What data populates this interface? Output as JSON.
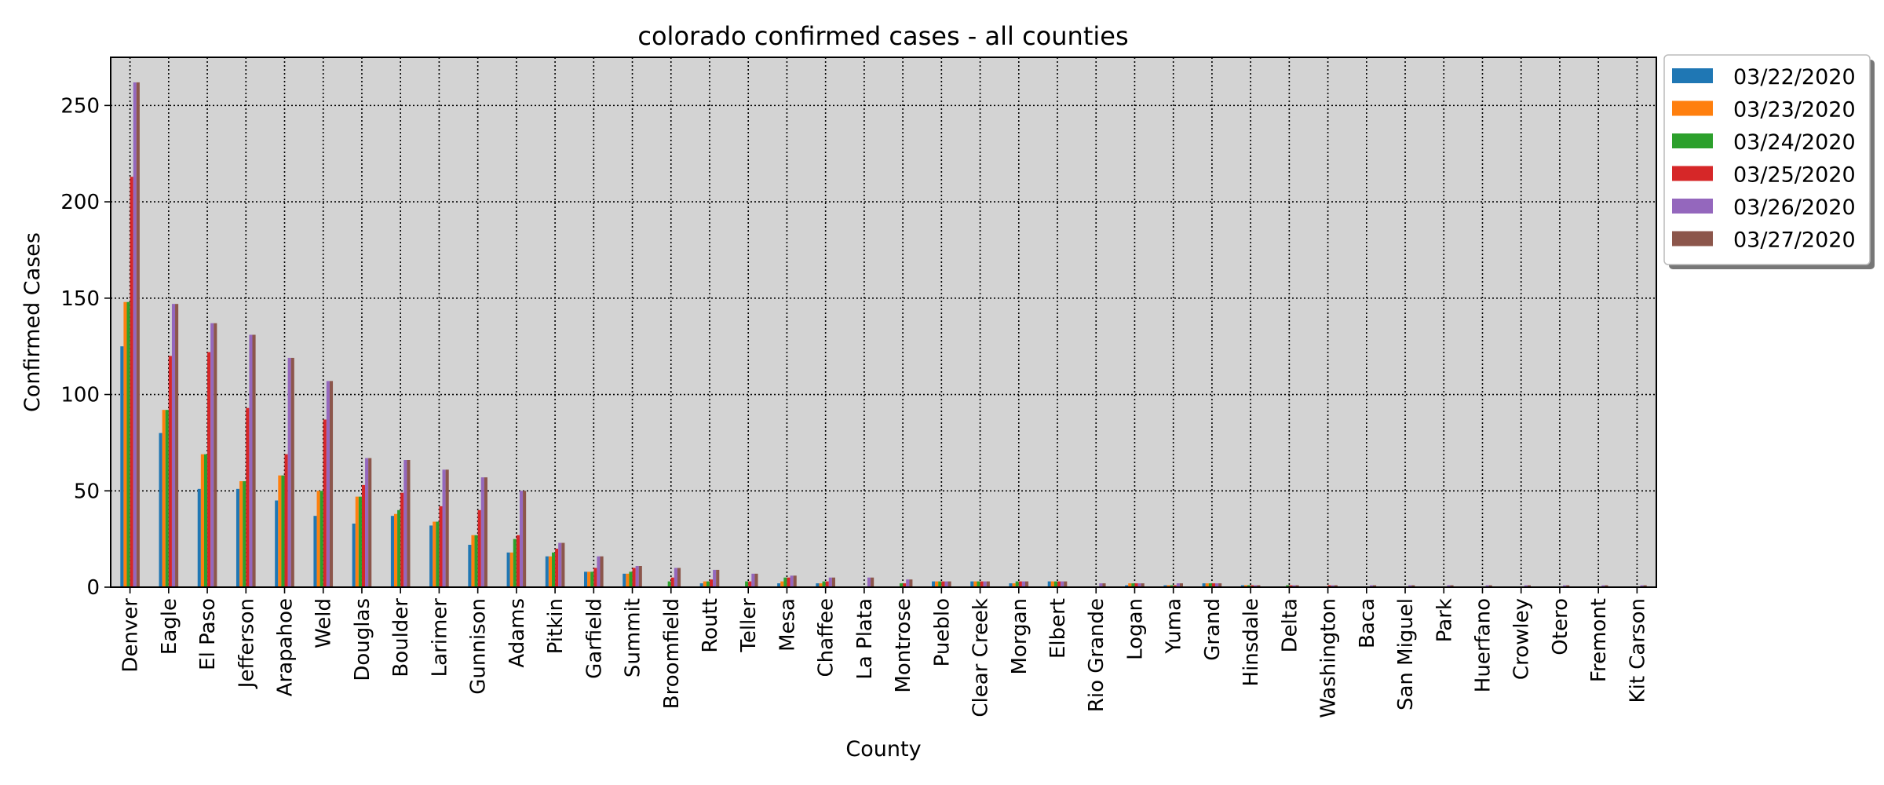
{
  "chart_data": {
    "type": "bar",
    "title": "colorado confirmed cases - all counties",
    "xlabel": "County",
    "ylabel": "Confirmed Cases",
    "ylim": [
      0,
      275
    ],
    "yticks": [
      0,
      50,
      100,
      150,
      200,
      250
    ],
    "grid": true,
    "legend_position": "outside-top-right",
    "background_color": "#d3d3d3",
    "categories": [
      "Denver",
      "Eagle",
      "El Paso",
      "Jefferson",
      "Arapahoe",
      "Weld",
      "Douglas",
      "Boulder",
      "Larimer",
      "Gunnison",
      "Adams",
      "Pitkin",
      "Garfield",
      "Summit",
      "Broomfield",
      "Routt",
      "Teller",
      "Mesa",
      "Chaffee",
      "La Plata",
      "Montrose",
      "Pueblo",
      "Clear Creek",
      "Morgan",
      "Elbert",
      "Rio Grande",
      "Logan",
      "Yuma",
      "Grand",
      "Hinsdale",
      "Delta",
      "Washington",
      "Baca",
      "San Miguel",
      "Park",
      "Huerfano",
      "Crowley",
      "Otero",
      "Fremont",
      "Kit Carson"
    ],
    "series": [
      {
        "name": "03/22/2020",
        "color": "#1f77b4",
        "values": [
          125,
          80,
          51,
          51,
          45,
          37,
          33,
          37,
          32,
          22,
          18,
          16,
          8,
          7,
          0,
          2,
          0,
          2,
          2,
          0,
          0,
          3,
          3,
          2,
          3,
          0,
          1,
          1,
          2,
          1,
          0,
          0,
          0,
          0,
          0,
          0,
          0,
          0,
          0,
          0
        ]
      },
      {
        "name": "03/23/2020",
        "color": "#ff7f0e",
        "values": [
          148,
          92,
          69,
          55,
          58,
          50,
          47,
          38,
          34,
          27,
          18,
          16,
          8,
          7,
          0,
          3,
          0,
          3,
          2,
          0,
          0,
          3,
          3,
          2,
          3,
          0,
          2,
          1,
          2,
          1,
          0,
          0,
          0,
          0,
          0,
          0,
          0,
          0,
          0,
          0
        ]
      },
      {
        "name": "03/24/2020",
        "color": "#2ca02c",
        "values": [
          148,
          92,
          69,
          55,
          58,
          50,
          47,
          40,
          34,
          27,
          25,
          18,
          8,
          8,
          3,
          3,
          3,
          5,
          3,
          0,
          2,
          3,
          3,
          3,
          3,
          0,
          2,
          1,
          2,
          1,
          1,
          0,
          0,
          0,
          0,
          0,
          0,
          0,
          0,
          0
        ]
      },
      {
        "name": "03/25/2020",
        "color": "#d62728",
        "values": [
          213,
          120,
          122,
          93,
          69,
          87,
          53,
          49,
          42,
          40,
          27,
          20,
          10,
          10,
          5,
          4,
          3,
          5,
          3,
          0,
          2,
          3,
          3,
          3,
          3,
          0,
          2,
          1,
          2,
          1,
          1,
          1,
          0,
          0,
          0,
          0,
          0,
          0,
          0,
          0
        ]
      },
      {
        "name": "03/26/2020",
        "color": "#9467bd",
        "values": [
          262,
          147,
          137,
          131,
          119,
          107,
          67,
          66,
          61,
          57,
          50,
          23,
          16,
          11,
          10,
          9,
          7,
          6,
          5,
          5,
          4,
          3,
          3,
          3,
          3,
          2,
          2,
          2,
          2,
          1,
          1,
          1,
          1,
          1,
          1,
          1,
          1,
          1,
          1,
          1
        ]
      },
      {
        "name": "03/27/2020",
        "color": "#8c564b",
        "values": [
          262,
          147,
          137,
          131,
          119,
          107,
          67,
          66,
          61,
          57,
          50,
          23,
          16,
          11,
          10,
          9,
          7,
          6,
          5,
          5,
          4,
          3,
          3,
          3,
          3,
          2,
          2,
          2,
          2,
          1,
          1,
          1,
          1,
          1,
          1,
          1,
          1,
          1,
          1,
          1
        ]
      }
    ]
  }
}
